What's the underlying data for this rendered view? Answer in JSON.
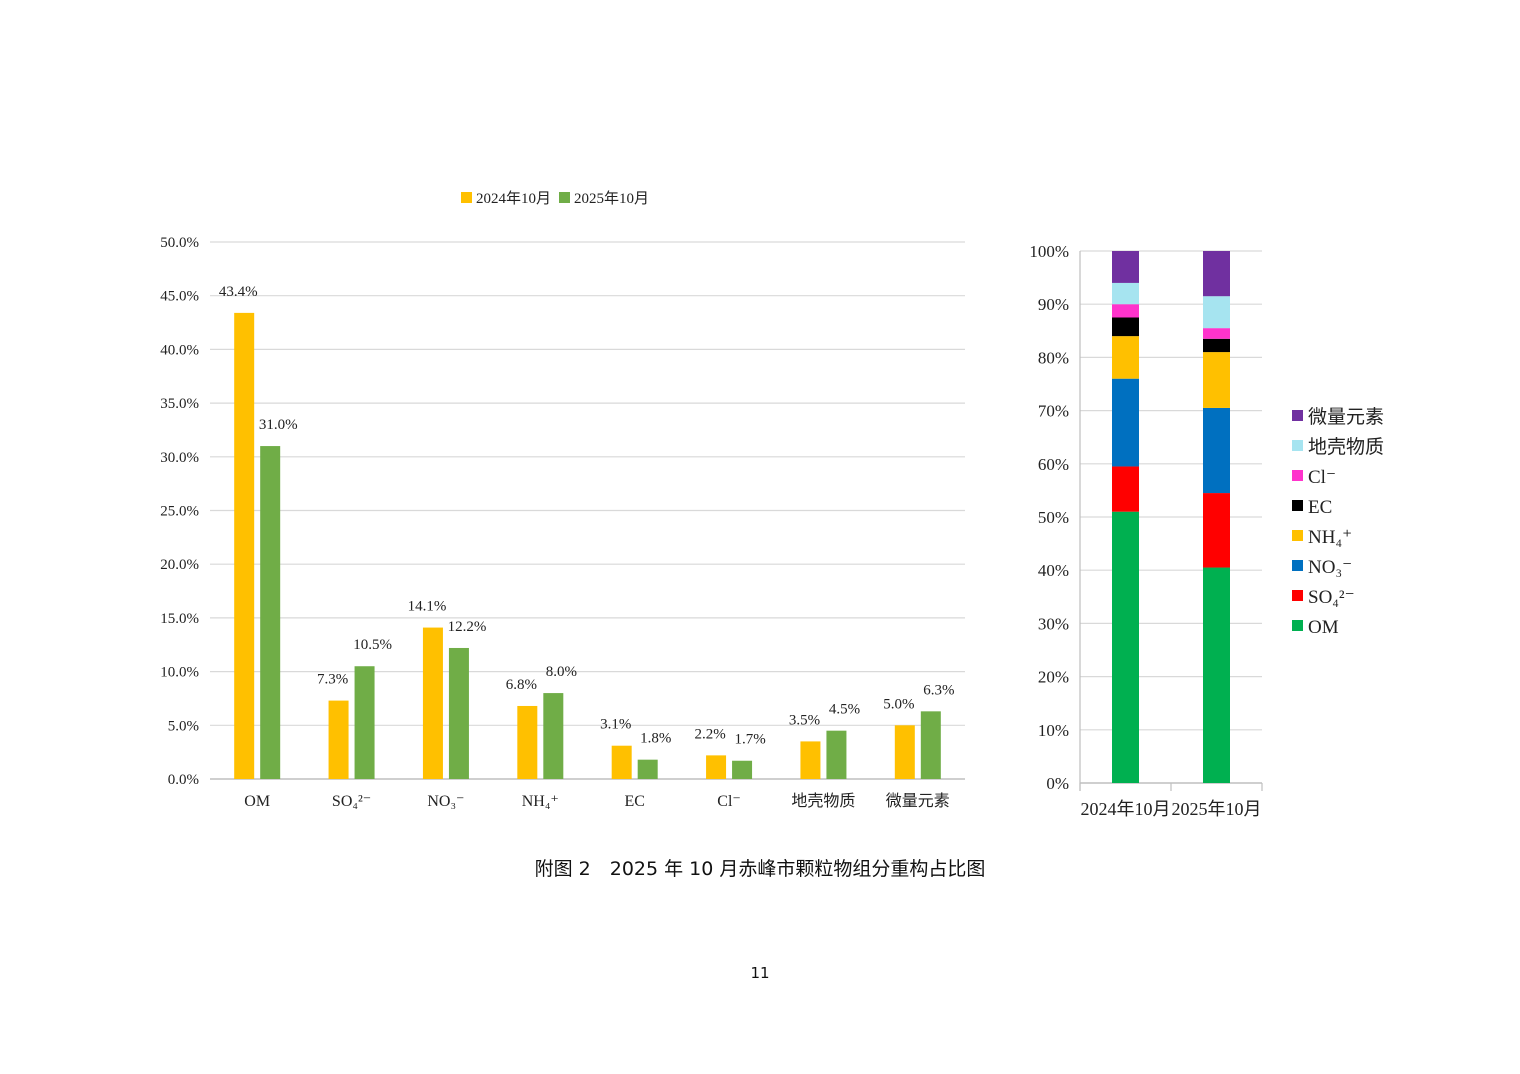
{
  "colors": {
    "series_2024": "#FFC000",
    "series_2025": "#70AD47",
    "grid": "#D9D9D9",
    "axis": "#BFBFBF",
    "stack": {
      "OM": "#00B050",
      "SO4": "#FF0000",
      "NO3": "#0070C0",
      "NH4": "#FFC000",
      "EC": "#000000",
      "Cl": "#FF33CC",
      "crust": "#A6E4F0",
      "trace": "#7030A0"
    }
  },
  "chart_data": [
    {
      "type": "bar",
      "title": "",
      "legend_position": "top",
      "grid": true,
      "categories": [
        "OM",
        "SO₄²⁻",
        "NO₃⁻",
        "NH₄⁺",
        "EC",
        "Cl⁻",
        "地壳物质",
        "微量元素"
      ],
      "series": [
        {
          "name": "2024年10月",
          "values": [
            43.4,
            7.3,
            14.1,
            6.8,
            3.1,
            2.2,
            3.5,
            5.0
          ],
          "labels": [
            "43.4%",
            "7.3%",
            "14.1%",
            "6.8%",
            "3.1%",
            "2.2%",
            "3.5%",
            "5.0%"
          ]
        },
        {
          "name": "2025年10月",
          "values": [
            31.0,
            10.5,
            12.2,
            8.0,
            1.8,
            1.7,
            4.5,
            6.3
          ],
          "labels": [
            "31.0%",
            "10.5%",
            "12.2%",
            "8.0%",
            "1.8%",
            "1.7%",
            "4.5%",
            "6.3%"
          ]
        }
      ],
      "ylim": [
        0,
        50
      ],
      "yticks": [
        "0.0%",
        "5.0%",
        "10.0%",
        "15.0%",
        "20.0%",
        "25.0%",
        "30.0%",
        "35.0%",
        "40.0%",
        "45.0%",
        "50.0%"
      ],
      "xlabel": "",
      "ylabel": ""
    },
    {
      "type": "bar",
      "stacked": "percent",
      "title": "",
      "legend_position": "right",
      "grid": true,
      "categories": [
        "2024年10月",
        "2025年10月"
      ],
      "series": [
        {
          "name": "OM",
          "values": [
            51,
            40.5
          ]
        },
        {
          "name": "SO₄²⁻",
          "values": [
            8.5,
            14
          ]
        },
        {
          "name": "NO₃⁻",
          "values": [
            16.5,
            16
          ]
        },
        {
          "name": "NH₄⁺",
          "values": [
            8,
            10.5
          ]
        },
        {
          "name": "EC",
          "values": [
            3.5,
            2.5
          ]
        },
        {
          "name": "Cl⁻",
          "values": [
            2.5,
            2
          ]
        },
        {
          "name": "地壳物质",
          "values": [
            4,
            6
          ]
        },
        {
          "name": "微量元素",
          "values": [
            6,
            8.5
          ]
        }
      ],
      "ylim": [
        0,
        100
      ],
      "yticks": [
        "0%",
        "10%",
        "20%",
        "30%",
        "40%",
        "50%",
        "60%",
        "70%",
        "80%",
        "90%",
        "100%"
      ],
      "xlabel": "",
      "ylabel": ""
    }
  ],
  "caption": "附图 2　2025 年 10 月赤峰市颗粒物组分重构占比图",
  "page_number": "11"
}
